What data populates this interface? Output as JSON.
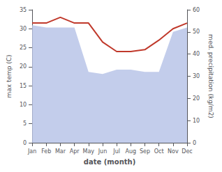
{
  "chart_data": {
    "type": "line",
    "categories": [
      "Jan",
      "Feb",
      "Mar",
      "Apr",
      "May",
      "Jun",
      "Jul",
      "Aug",
      "Sep",
      "Oct",
      "Nov",
      "Dec"
    ],
    "series": [
      {
        "type": "area",
        "color": "#b8c4e8",
        "axis": "y2",
        "values": [
          53.0,
          52.0,
          52.0,
          52.0,
          32.0,
          31.0,
          33.0,
          33.0,
          32.0,
          32.0,
          50.0,
          52.0
        ]
      },
      {
        "type": "line",
        "color": "#c0392b",
        "values": [
          31.5,
          31.5,
          33.0,
          31.5,
          31.5,
          26.5,
          24.0,
          24.0,
          24.5,
          27.0,
          30.0,
          31.5
        ]
      }
    ],
    "xlabel": "date (month)",
    "ylabel": "max temp (C)",
    "y2label": "med. precipitation (kg/m2)",
    "ylim": [
      0,
      35
    ],
    "yticks": [
      0,
      5,
      10,
      15,
      20,
      25,
      30,
      35
    ],
    "y2lim": [
      0,
      60
    ],
    "y2ticks": [
      0,
      10,
      20,
      30,
      40,
      50,
      60
    ],
    "grid": false
  }
}
